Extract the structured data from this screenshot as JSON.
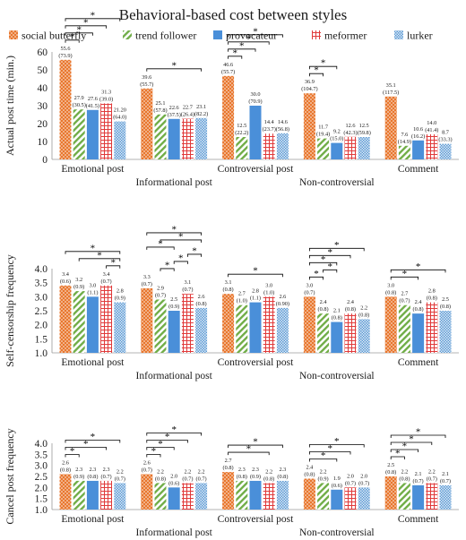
{
  "title": "Behavioral-based cost between styles",
  "legend": [
    {
      "key": "social_butterfly",
      "label": "social butterfly",
      "color": "#E8772E",
      "pattern": "dots"
    },
    {
      "key": "trend_follower",
      "label": "trend follower",
      "color": "#70AD47",
      "pattern": "diag"
    },
    {
      "key": "provocateur",
      "label": "provocateur",
      "color": "#4A8FD9",
      "pattern": "solid"
    },
    {
      "key": "meformer",
      "label": "meformer",
      "color": "#E03A3A",
      "pattern": "grid"
    },
    {
      "key": "lurker",
      "label": "lurker",
      "color": "#5B9BD5",
      "pattern": "check"
    }
  ],
  "chart_data": [
    {
      "type": "bar",
      "ylabel": "Actual post time (min.)",
      "ylim": [
        0,
        60
      ],
      "yticks": [
        "0",
        "10",
        "20",
        "30",
        "40",
        "50",
        "60"
      ],
      "categories": [
        "Emotional post",
        "Informational post",
        "Controversial post",
        "Non-controversial",
        "Comment"
      ],
      "series": [
        {
          "name": "social butterfly",
          "values": [
            55.6,
            39.6,
            46.6,
            36.9,
            35.1
          ],
          "sd": [
            "(73.9)",
            "(55.7)",
            "(55.7)",
            "(104.7)",
            "(117.5)"
          ]
        },
        {
          "name": "trend follower",
          "values": [
            27.9,
            25.1,
            12.5,
            11.7,
            7.6
          ],
          "sd": [
            "(30.5)",
            "(57.8)",
            "(22.2)",
            "(19.4)",
            "(14.9)"
          ]
        },
        {
          "name": "provocateur",
          "values": [
            27.6,
            22.6,
            30.0,
            9.2,
            10.6
          ],
          "sd": [
            "(41.5)",
            "(37.5)",
            "(70.9)",
            "(15.0)",
            "(16.2)"
          ]
        },
        {
          "name": "meformer",
          "values": [
            31.3,
            22.7,
            14.4,
            12.6,
            14.0
          ],
          "sd": [
            "(39.0)",
            "(26.4)",
            "(23.7)",
            "(42.3)",
            "(41.4)"
          ]
        },
        {
          "name": "lurker",
          "values": [
            21.2,
            23.1,
            14.6,
            12.5,
            8.7
          ],
          "sd": [
            "(64.0)",
            "(82.2)",
            "(56.8)",
            "(59.8)",
            "(33.3)"
          ]
        }
      ],
      "labels": [
        [
          "55.6",
          "27.9",
          "27.6",
          "31.3",
          "21.20"
        ],
        [
          "39.6",
          "25.1",
          "22.6",
          "22.7",
          "23.1"
        ],
        [
          "46.6",
          "12.5",
          "30.0",
          "14.4",
          "14.6"
        ],
        [
          "36.9",
          "11.7",
          "9.2",
          "12.6",
          "12.5"
        ],
        [
          "35.1",
          "7.6",
          "10.6",
          "14.0",
          "8.7"
        ]
      ],
      "significance": [
        {
          "category": 0,
          "from": 0,
          "to": 1,
          "star": "*"
        },
        {
          "category": 0,
          "from": 0,
          "to": 2,
          "star": "*"
        },
        {
          "category": 0,
          "from": 0,
          "to": 3,
          "star": "*"
        },
        {
          "category": 0,
          "from": 0,
          "to": 4,
          "star": "*"
        },
        {
          "category": 1,
          "from": 0,
          "to": 4,
          "star": "*"
        },
        {
          "category": 2,
          "from": 0,
          "to": 1,
          "star": "*"
        },
        {
          "category": 2,
          "from": 0,
          "to": 2,
          "star": "*"
        },
        {
          "category": 2,
          "from": 0,
          "to": 3,
          "star": "*"
        },
        {
          "category": 2,
          "from": 0,
          "to": 4,
          "star": "*"
        },
        {
          "category": 3,
          "from": 0,
          "to": 1,
          "star": "*"
        },
        {
          "category": 3,
          "from": 0,
          "to": 2,
          "star": "*"
        }
      ]
    },
    {
      "type": "bar",
      "ylabel": "Self-censorship frequency",
      "ylim": [
        1,
        4
      ],
      "yticks": [
        "1.0",
        "1.5",
        "2.0",
        "2.5",
        "3.0",
        "3.5",
        "4.0"
      ],
      "categories": [
        "Emotional post",
        "Informational post",
        "Controversial post",
        "Non-controversial",
        "Comment"
      ],
      "series": [
        {
          "name": "social butterfly",
          "values": [
            3.4,
            3.3,
            3.1,
            3.0,
            3.0
          ],
          "sd": [
            "(0.6)",
            "(0.7)",
            "(0.8)",
            "(0.7)",
            "(0.8)"
          ]
        },
        {
          "name": "trend follower",
          "values": [
            3.2,
            2.9,
            2.7,
            2.4,
            2.7
          ],
          "sd": [
            "(0.9)",
            "(0.7)",
            "(1.0)",
            "(0.8)",
            "(0.7)"
          ]
        },
        {
          "name": "provocateur",
          "values": [
            3.0,
            2.5,
            2.8,
            2.1,
            2.4
          ],
          "sd": [
            "(1.1)",
            "(0.9)",
            "(1.1)",
            "(0.8)",
            "(0.8)"
          ]
        },
        {
          "name": "meformer",
          "values": [
            3.4,
            3.1,
            3.0,
            2.4,
            2.8
          ],
          "sd": [
            "(0.7)",
            "(0.7)",
            "(1.0)",
            "(0.8)",
            "(0.8)"
          ]
        },
        {
          "name": "lurker",
          "values": [
            2.8,
            2.6,
            2.6,
            2.2,
            2.5
          ],
          "sd": [
            "(0.9)",
            "(0.8)",
            "(0.90)",
            "(0.8)",
            "(0.8)"
          ]
        }
      ],
      "labels": [
        [
          "3.4",
          "3.2",
          "3.0",
          "3.4",
          "2.8"
        ],
        [
          "3.3",
          "2.9",
          "2.5",
          "3.1",
          "2.6"
        ],
        [
          "3.1",
          "2.7",
          "2.8",
          "3.0",
          "2.6"
        ],
        [
          "3.0",
          "2.4",
          "2.1",
          "2.4",
          "2.2"
        ],
        [
          "3.0",
          "2.7",
          "2.4",
          "2.8",
          "2.5"
        ]
      ],
      "significance": [
        {
          "category": 0,
          "from": 0,
          "to": 4,
          "star": "*"
        },
        {
          "category": 0,
          "from": 1,
          "to": 4,
          "star": "*"
        },
        {
          "category": 0,
          "from": 3,
          "to": 4,
          "star": "*"
        },
        {
          "category": 1,
          "from": 0,
          "to": 4,
          "star": "*"
        },
        {
          "category": 1,
          "from": 0,
          "to": 2,
          "star": "*"
        },
        {
          "category": 1,
          "from": 1,
          "to": 4,
          "star": "*"
        },
        {
          "category": 1,
          "from": 1,
          "to": 2,
          "star": "*"
        },
        {
          "category": 1,
          "from": 2,
          "to": 3,
          "star": "*"
        },
        {
          "category": 1,
          "from": 3,
          "to": 4,
          "star": "*"
        },
        {
          "category": 2,
          "from": 0,
          "to": 4,
          "star": "*"
        },
        {
          "category": 3,
          "from": 0,
          "to": 4,
          "star": "*"
        },
        {
          "category": 3,
          "from": 0,
          "to": 3,
          "star": "*"
        },
        {
          "category": 3,
          "from": 0,
          "to": 2,
          "star": "*"
        },
        {
          "category": 3,
          "from": 0,
          "to": 1,
          "star": "*"
        },
        {
          "category": 3,
          "from": 1,
          "to": 2,
          "star": "*"
        },
        {
          "category": 4,
          "from": 0,
          "to": 4,
          "star": "*"
        },
        {
          "category": 4,
          "from": 0,
          "to": 2,
          "star": "*"
        }
      ]
    },
    {
      "type": "bar",
      "ylabel": "Cancel post frequency",
      "ylim": [
        1,
        4
      ],
      "yticks": [
        "1.0",
        "1.5",
        "2.0",
        "2.5",
        "3.0",
        "3.5",
        "4.0"
      ],
      "categories": [
        "Emotional post",
        "Informational post",
        "Controversial post",
        "Non-controversial",
        "Comment"
      ],
      "series": [
        {
          "name": "social butterfly",
          "values": [
            2.6,
            2.6,
            2.7,
            2.4,
            2.5
          ],
          "sd": [
            "(0.8)",
            "(0.7)",
            "(0.8)",
            "(0.8)",
            "(0.8)"
          ]
        },
        {
          "name": "trend follower",
          "values": [
            2.3,
            2.2,
            2.3,
            2.2,
            2.2
          ],
          "sd": [
            "(0.9)",
            "(0.8)",
            "(0.8)",
            "(0.9)",
            "(0.8)"
          ]
        },
        {
          "name": "provocateur",
          "values": [
            2.3,
            2.0,
            2.3,
            1.9,
            2.1
          ],
          "sd": [
            "(0.8)",
            "(0.6)",
            "(0.9)",
            "(0.6)",
            "(0.7)"
          ]
        },
        {
          "name": "meformer",
          "values": [
            2.3,
            2.2,
            2.2,
            2.0,
            2.2
          ],
          "sd": [
            "(0.7)",
            "(0.7)",
            "(0.8)",
            "(0.7)",
            "(0.7)"
          ]
        },
        {
          "name": "lurker",
          "values": [
            2.2,
            2.2,
            2.3,
            2.0,
            2.1
          ],
          "sd": [
            "(0.7)",
            "(0.7)",
            "(0.8)",
            "(0.7)",
            "(0.7)"
          ]
        }
      ],
      "labels": [
        [
          "2.6",
          "2.3",
          "2.3",
          "2.3",
          "2.2"
        ],
        [
          "2.6",
          "2.2",
          "2.0",
          "2.2",
          "2.2"
        ],
        [
          "2.7",
          "2.3",
          "2.3",
          "2.2",
          "2.3"
        ],
        [
          "2.4",
          "2.2",
          "1.9",
          "2.0",
          "2.0"
        ],
        [
          "2.5",
          "2.2",
          "2.1",
          "2.2",
          "2.1"
        ]
      ],
      "significance": [
        {
          "category": 0,
          "from": 0,
          "to": 4,
          "star": "*"
        },
        {
          "category": 0,
          "from": 0,
          "to": 3,
          "star": "*"
        },
        {
          "category": 0,
          "from": 0,
          "to": 1,
          "star": "*"
        },
        {
          "category": 1,
          "from": 0,
          "to": 4,
          "star": "*"
        },
        {
          "category": 1,
          "from": 0,
          "to": 3,
          "star": "*"
        },
        {
          "category": 1,
          "from": 0,
          "to": 2,
          "star": "*"
        },
        {
          "category": 1,
          "from": 0,
          "to": 1,
          "star": "*"
        },
        {
          "category": 2,
          "from": 0,
          "to": 4,
          "star": "*"
        },
        {
          "category": 2,
          "from": 0,
          "to": 3,
          "star": "*"
        },
        {
          "category": 3,
          "from": 0,
          "to": 4,
          "star": "*"
        },
        {
          "category": 3,
          "from": 0,
          "to": 3,
          "star": "*"
        },
        {
          "category": 3,
          "from": 0,
          "to": 2,
          "star": "*"
        },
        {
          "category": 4,
          "from": 0,
          "to": 4,
          "star": "*"
        },
        {
          "category": 4,
          "from": 0,
          "to": 3,
          "star": "*"
        },
        {
          "category": 4,
          "from": 0,
          "to": 2,
          "star": "*"
        },
        {
          "category": 4,
          "from": 0,
          "to": 1,
          "star": "*"
        }
      ]
    }
  ]
}
